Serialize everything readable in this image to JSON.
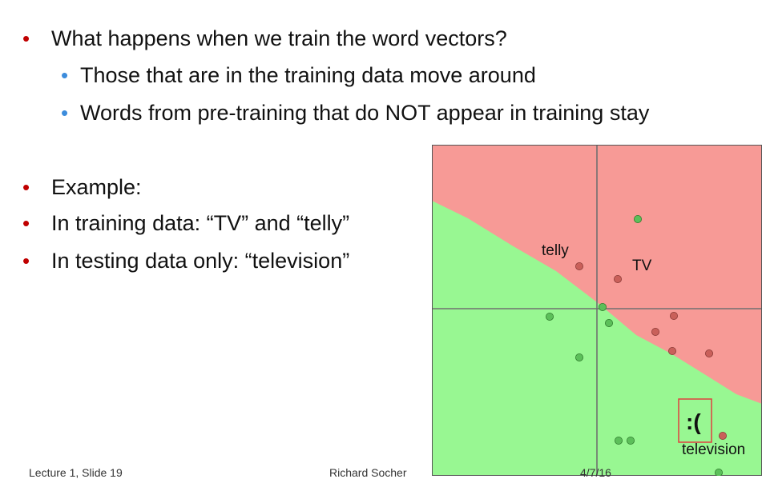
{
  "bullets": [
    {
      "text": "What happens when we train the word vectors?",
      "level": 1
    },
    {
      "text": "Those that are in the training data move around",
      "level": 2
    },
    {
      "text": "Words from pre-training that do NOT appear in training stay",
      "level": 2
    },
    {
      "text": "Example:",
      "level": 1
    },
    {
      "text": "In training data: “TV” and “telly”",
      "level": 1
    },
    {
      "text": "In testing data only: “television”",
      "level": 1
    }
  ],
  "diagram": {
    "labels": {
      "telly": "telly",
      "tv": "TV",
      "television": "television",
      "sad_face": ":("
    },
    "colors": {
      "red_region": "#f79a96",
      "green_region": "#98f792",
      "red_point": "#c9605a",
      "green_point": "#5cbf5a",
      "axis": "#707070",
      "highlight_box": "#e04040"
    }
  },
  "footer": {
    "left": "Lecture 1, Slide 19",
    "center": "Richard Socher",
    "right": "4/7/16"
  }
}
